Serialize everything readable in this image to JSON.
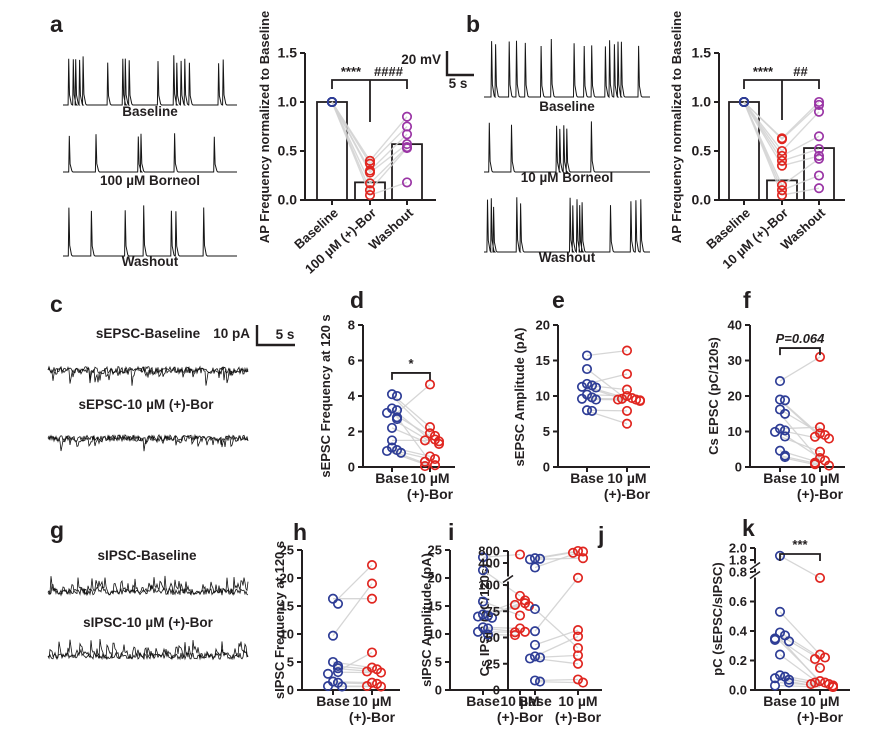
{
  "colors": {
    "blue": "#2e3d96",
    "red": "#e02620",
    "purple": "#9a35a5",
    "gray_line": "#d2d2d2",
    "axis": "#231f20",
    "trace": "#161616"
  },
  "panels": {
    "a": {
      "letter": "a",
      "trace_labels": [
        "Baseline",
        "100 µM Borneol",
        "Washout"
      ],
      "scalebar": {
        "v": "20 mV",
        "h": "5 s"
      }
    },
    "b": {
      "letter": "b",
      "trace_labels": [
        "Baseline",
        "10 µM Borneol",
        "Washout"
      ]
    },
    "c": {
      "letter": "c",
      "trace_labels": [
        "sEPSC-Baseline",
        "sEPSC-10 µM (+)-Bor"
      ],
      "scalebar": {
        "v": "10 pA",
        "h": "5 s"
      }
    },
    "d": {
      "letter": "d"
    },
    "e": {
      "letter": "e"
    },
    "f": {
      "letter": "f"
    },
    "g": {
      "letter": "g",
      "trace_labels": [
        "sIPSC-Baseline",
        "sIPSC-10 µM (+)-Bor"
      ]
    },
    "h": {
      "letter": "h"
    },
    "i": {
      "letter": "i"
    },
    "j": {
      "letter": "j"
    },
    "k": {
      "letter": "k"
    }
  },
  "chart_data": [
    {
      "id": "a",
      "type": "bar",
      "ylabel": "AP Frequency normalized to Baseline",
      "categories": [
        "Baseline",
        "100 µM (+)-Bor",
        "Washout"
      ],
      "bar_values": [
        1.0,
        0.18,
        0.57
      ],
      "ylim": [
        0,
        1.5
      ],
      "yticks": [
        0,
        0.5,
        1.0,
        1.5
      ],
      "ytick_labels": [
        "0.0",
        "0.5",
        "1.0",
        "1.5"
      ],
      "point_colors": [
        "blue",
        "red",
        "purple"
      ],
      "subjects": [
        [
          1,
          0.4,
          0.85
        ],
        [
          1,
          0.37,
          0.75
        ],
        [
          1,
          0.3,
          0.67
        ],
        [
          1,
          0.28,
          0.57
        ],
        [
          1,
          0.17,
          0.54
        ],
        [
          1,
          0.1,
          0.53
        ],
        [
          1,
          0.05,
          0.18
        ]
      ],
      "sig": [
        "****",
        "####"
      ]
    },
    {
      "id": "b",
      "type": "bar",
      "ylabel": "AP Frequency normalized to Baseline",
      "categories": [
        "Baseline",
        "10 µM (+)-Bor",
        "Washout"
      ],
      "bar_values": [
        1.0,
        0.2,
        0.53
      ],
      "ylim": [
        0,
        1.5
      ],
      "yticks": [
        0,
        0.5,
        1.0,
        1.5
      ],
      "ytick_labels": [
        "0.0",
        "0.5",
        "1.0",
        "1.5"
      ],
      "point_colors": [
        "blue",
        "red",
        "purple"
      ],
      "subjects": [
        [
          1,
          0.63,
          1.0
        ],
        [
          1,
          0.62,
          0.97
        ],
        [
          1,
          0.5,
          0.9
        ],
        [
          1,
          0.45,
          0.65
        ],
        [
          1,
          0.4,
          0.52
        ],
        [
          1,
          0.35,
          0.45
        ],
        [
          1,
          0.15,
          0.42
        ],
        [
          1,
          0.1,
          0.25
        ],
        [
          1,
          0.05,
          0.12
        ]
      ],
      "sig": [
        "****",
        "##"
      ]
    },
    {
      "id": "d",
      "type": "paired-scatter",
      "ylabel": "sEPSC Frequency at 120 s",
      "categories": [
        "Base",
        "10 µM (+)-Bor"
      ],
      "xtick_line1": [
        "Base",
        "10 µM"
      ],
      "xtick_line2": "(+)-Bor",
      "ylim": [
        0,
        8
      ],
      "yticks": [
        0,
        2,
        4,
        6,
        8
      ],
      "ytick_labels": [
        "0",
        "2",
        "4",
        "6",
        "8"
      ],
      "pairs": [
        [
          4.1,
          2.25
        ],
        [
          4.0,
          1.9
        ],
        [
          3.3,
          1.55
        ],
        [
          3.2,
          0.3
        ],
        [
          3.05,
          1.75
        ],
        [
          2.8,
          4.65
        ],
        [
          2.7,
          1.45
        ],
        [
          2.2,
          1.3
        ],
        [
          1.5,
          1.5
        ],
        [
          1.1,
          0.6
        ],
        [
          0.95,
          0.45
        ],
        [
          0.9,
          0.1
        ],
        [
          0.8,
          0.05
        ]
      ],
      "sig": {
        "label": "*",
        "at": 5.3
      }
    },
    {
      "id": "e",
      "type": "paired-scatter",
      "ylabel": "sEPSC Amplitude (pA)",
      "categories": [
        "Base",
        "10 µM (+)-Bor"
      ],
      "xtick_line1": [
        "Base",
        "10 µM"
      ],
      "xtick_line2": "(+)-Bor",
      "ylim": [
        0,
        20
      ],
      "yticks": [
        0,
        5,
        10,
        15,
        20
      ],
      "ytick_labels": [
        "0",
        "5",
        "10",
        "15",
        "20"
      ],
      "pairs": [
        [
          15.7,
          16.4
        ],
        [
          13.8,
          9.5
        ],
        [
          11.7,
          13.1
        ],
        [
          11.5,
          10.9
        ],
        [
          11.3,
          9.7
        ],
        [
          11.2,
          9.4
        ],
        [
          10.2,
          10.0
        ],
        [
          9.8,
          9.3
        ],
        [
          9.6,
          9.6
        ],
        [
          9.5,
          9.5
        ],
        [
          8.0,
          7.9
        ],
        [
          7.9,
          6.1
        ]
      ]
    },
    {
      "id": "f",
      "type": "paired-scatter",
      "ylabel": "Cs EPSC (pC/120s)",
      "categories": [
        "Base",
        "10 µM (+)-Bor"
      ],
      "xtick_line1": [
        "Base",
        "10 µM"
      ],
      "xtick_line2": "(+)-Bor",
      "ylim": [
        0,
        40
      ],
      "yticks": [
        0,
        10,
        20,
        30,
        40
      ],
      "ytick_labels": [
        "0",
        "10",
        "20",
        "30",
        "40"
      ],
      "pairs": [
        [
          24.2,
          31
        ],
        [
          19.0,
          9.0
        ],
        [
          18.8,
          8.5
        ],
        [
          16.2,
          9.5
        ],
        [
          15.0,
          1.8
        ],
        [
          10.8,
          11.2
        ],
        [
          10.3,
          8.0
        ],
        [
          9.9,
          2.5
        ],
        [
          8.6,
          4.3
        ],
        [
          4.6,
          1.2
        ],
        [
          3.2,
          0.8
        ],
        [
          2.8,
          0.4
        ]
      ],
      "sig": {
        "label": "P=0.064",
        "at": 33.5,
        "italic": true
      }
    },
    {
      "id": "h",
      "type": "paired-scatter",
      "ylabel": "sIPSC Frequency at 120 s",
      "categories": [
        "Base",
        "10 µM (+)-Bor"
      ],
      "xtick_line1": [
        "Base",
        "10 µM"
      ],
      "xtick_line2": "(+)-Bor",
      "ylim": [
        0,
        25
      ],
      "yticks": [
        0,
        5,
        10,
        15,
        20,
        25
      ],
      "ytick_labels": [
        "0",
        "5",
        "10",
        "15",
        "20",
        "25"
      ],
      "pairs": [
        [
          16.3,
          16.3
        ],
        [
          15.4,
          22.3
        ],
        [
          9.7,
          19.0
        ],
        [
          5.0,
          4.0
        ],
        [
          4.3,
          3.7
        ],
        [
          3.9,
          3.3
        ],
        [
          3.2,
          3.1
        ],
        [
          2.9,
          6.7
        ],
        [
          1.5,
          1.3
        ],
        [
          1.3,
          1.1
        ],
        [
          0.7,
          0.7
        ],
        [
          0.6,
          0.6
        ]
      ]
    },
    {
      "id": "i",
      "type": "paired-scatter",
      "ylabel": "sIPSC Amplitude (pA)",
      "categories": [
        "Base",
        "10 µM (+)-Bor"
      ],
      "xtick_line1": [
        "Base",
        "10 µM"
      ],
      "xtick_line2": "(+)-Bor",
      "ylim": [
        0,
        25
      ],
      "yticks": [
        0,
        5,
        10,
        15,
        20,
        25
      ],
      "ytick_labels": [
        "0",
        "5",
        "10",
        "15",
        "20",
        "25"
      ],
      "pairs": [
        [
          23.7,
          24.2
        ],
        [
          21.4,
          16.8
        ],
        [
          15.8,
          13.3
        ],
        [
          13.5,
          16.0
        ],
        [
          13.3,
          15.2
        ],
        [
          13.1,
          15.0
        ],
        [
          12.9,
          15.5
        ],
        [
          11.2,
          11.0
        ],
        [
          11.0,
          10.4
        ],
        [
          10.4,
          10.3
        ],
        [
          9.9,
          9.8
        ]
      ]
    },
    {
      "id": "j",
      "type": "paired-scatter",
      "ylabel": "Cs IPSC (pC/120s)",
      "categories": [
        "Base",
        "10 µM (+)-Bor"
      ],
      "xtick_line1": [
        "Base",
        "10 µM"
      ],
      "xtick_line2": "(+)-Bor",
      "ylim": [
        0,
        800
      ],
      "yticks": [
        0,
        25,
        50,
        75,
        100,
        400,
        800
      ],
      "ytick_labels": [
        "0",
        "25",
        "50",
        "75",
        "100",
        "400",
        "800"
      ],
      "axis_break_between": [
        [
          100,
          400
        ]
      ],
      "pairs": [
        [
          560,
          800
        ],
        [
          540,
          780
        ],
        [
          520,
          560
        ],
        [
          310,
          740
        ],
        [
          77,
          40
        ],
        [
          56,
          105
        ],
        [
          43,
          57
        ],
        [
          32,
          51
        ],
        [
          31,
          33
        ],
        [
          30,
          25
        ],
        [
          9,
          10
        ],
        [
          8,
          7
        ]
      ]
    },
    {
      "id": "k",
      "type": "paired-scatter",
      "ylabel": "pC (sEPSC/sIPSC)",
      "categories": [
        "Base",
        "10 µM (+)-Bor"
      ],
      "xtick_line1": [
        "Base",
        "10 µM"
      ],
      "xtick_line2": "(+)-Bor",
      "ylim": [
        0,
        2.0
      ],
      "yticks": [
        0,
        0.2,
        0.4,
        0.6,
        0.8,
        1.8,
        2.0
      ],
      "ytick_labels": [
        "0.0",
        "0.2",
        "0.4",
        "0.6",
        "0.8",
        "1.8",
        "2.0"
      ],
      "axis_break_between": [
        [
          0.8,
          1.8
        ]
      ],
      "pairs": [
        [
          1.87,
          0.76
        ],
        [
          0.53,
          0.24
        ],
        [
          0.39,
          0.22
        ],
        [
          0.37,
          0.21
        ],
        [
          0.35,
          0.05
        ],
        [
          0.34,
          0.15
        ],
        [
          0.33,
          0.06
        ],
        [
          0.24,
          0.04
        ],
        [
          0.1,
          0.05
        ],
        [
          0.09,
          0.03
        ],
        [
          0.08,
          0.04
        ],
        [
          0.07,
          0.02
        ],
        [
          0.05,
          0.03
        ],
        [
          0.03,
          0.02
        ]
      ],
      "sig": {
        "label": "***",
        "at": 1.9
      }
    }
  ]
}
